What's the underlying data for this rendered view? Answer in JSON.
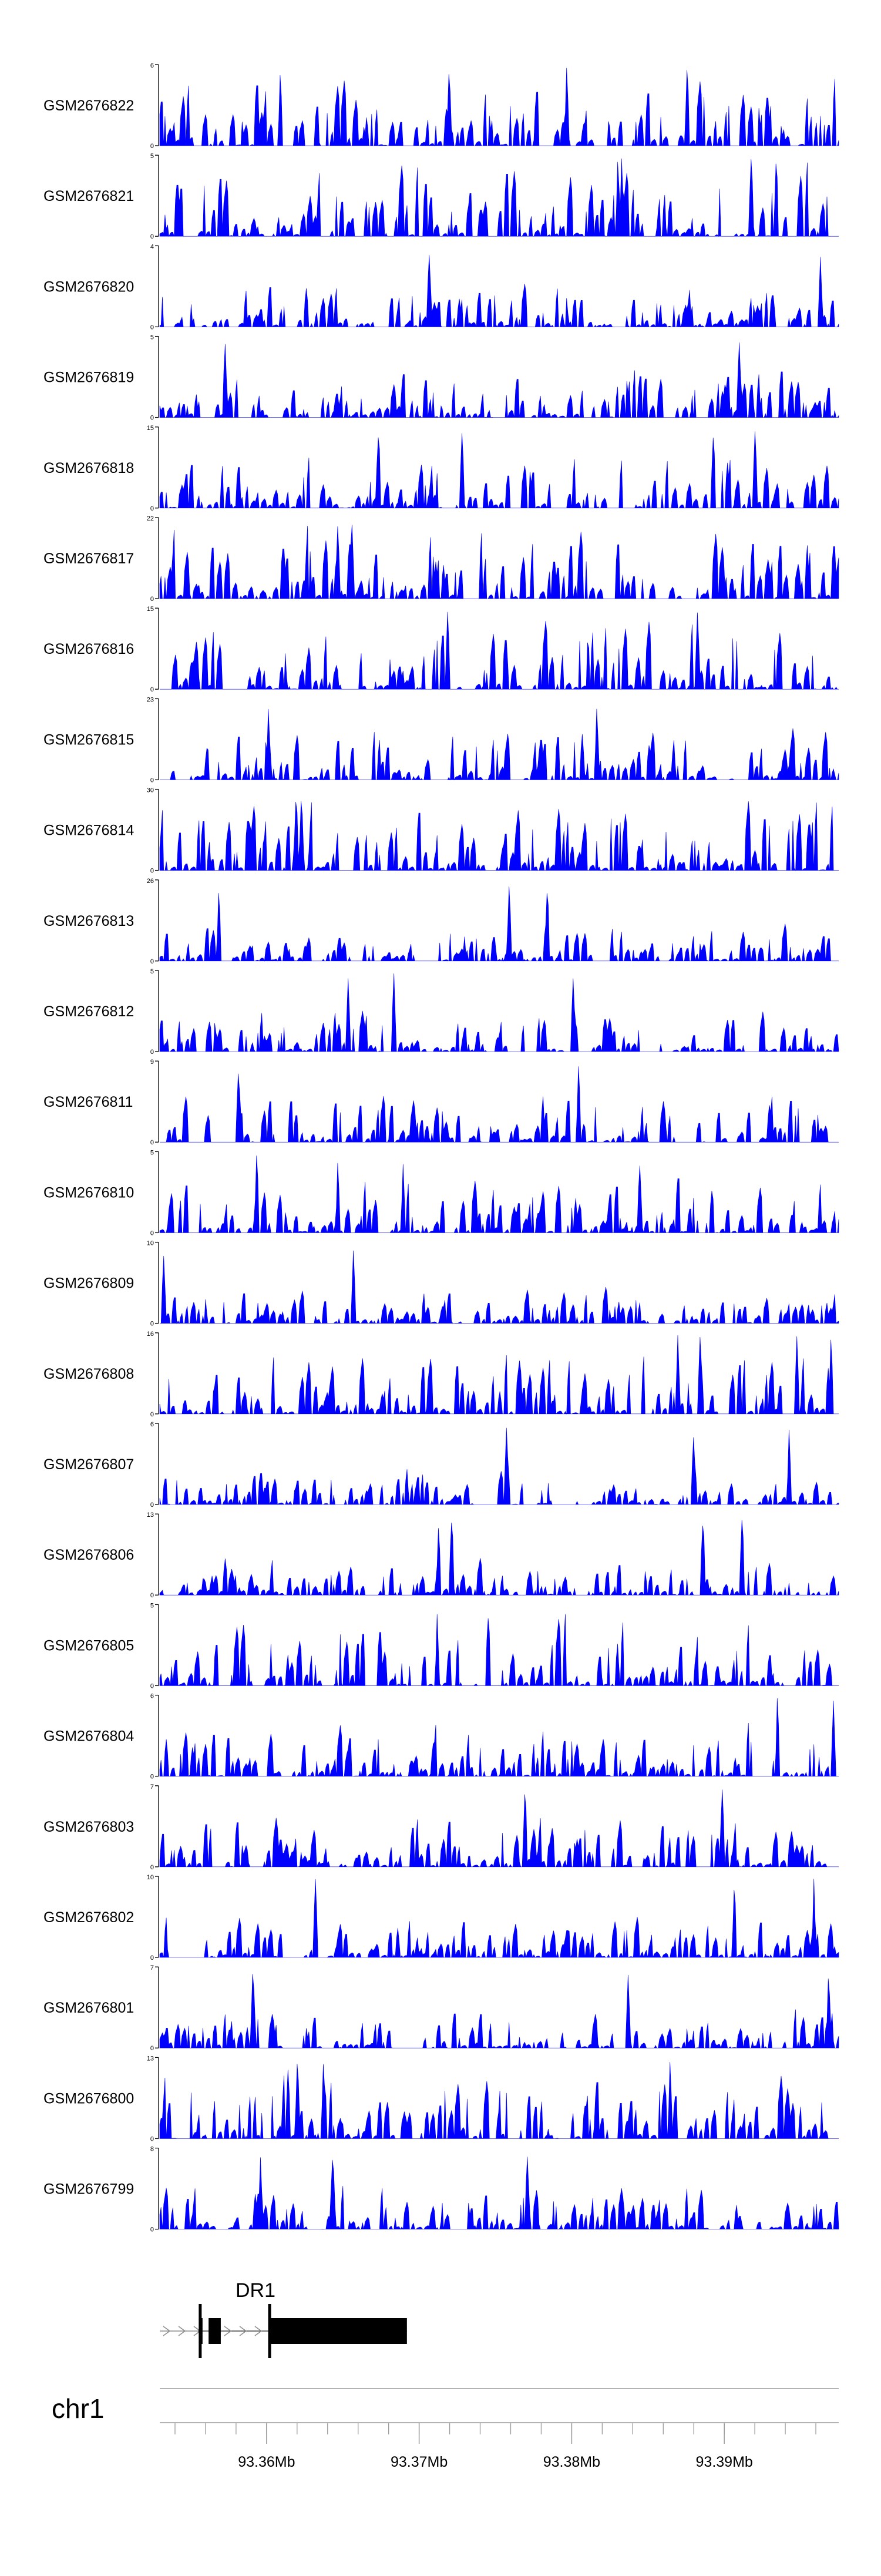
{
  "chart_data": {
    "type": "area",
    "title": "",
    "fill_color": "#0000ff",
    "axis_color": "#000000",
    "x_range_bp": [
      93353000,
      93397500
    ],
    "tracks": [
      {
        "label": "GSM2676822",
        "ymax": 6,
        "ymax_label": "6"
      },
      {
        "label": "GSM2676821",
        "ymax": 5,
        "ymax_label": "5"
      },
      {
        "label": "GSM2676820",
        "ymax": 4,
        "ymax_label": "4"
      },
      {
        "label": "GSM2676819",
        "ymax": 5,
        "ymax_label": "5"
      },
      {
        "label": "GSM2676818",
        "ymax": 15,
        "ymax_label": "15"
      },
      {
        "label": "GSM2676817",
        "ymax": 22,
        "ymax_label": "22"
      },
      {
        "label": "GSM2676816",
        "ymax": 15,
        "ymax_label": "15"
      },
      {
        "label": "GSM2676815",
        "ymax": 23,
        "ymax_label": "23"
      },
      {
        "label": "GSM2676814",
        "ymax": 30,
        "ymax_label": "30"
      },
      {
        "label": "GSM2676813",
        "ymax": 26,
        "ymax_label": "26"
      },
      {
        "label": "GSM2676812",
        "ymax": 5,
        "ymax_label": "5"
      },
      {
        "label": "GSM2676811",
        "ymax": 9,
        "ymax_label": "9"
      },
      {
        "label": "GSM2676810",
        "ymax": 5,
        "ymax_label": "5"
      },
      {
        "label": "GSM2676809",
        "ymax": 10,
        "ymax_label": "10"
      },
      {
        "label": "GSM2676808",
        "ymax": 16,
        "ymax_label": "16"
      },
      {
        "label": "GSM2676807",
        "ymax": 6,
        "ymax_label": "6"
      },
      {
        "label": "GSM2676806",
        "ymax": 13,
        "ymax_label": "13"
      },
      {
        "label": "GSM2676805",
        "ymax": 5,
        "ymax_label": "5"
      },
      {
        "label": "GSM2676804",
        "ymax": 6,
        "ymax_label": "6"
      },
      {
        "label": "GSM2676803",
        "ymax": 7,
        "ymax_label": "7"
      },
      {
        "label": "GSM2676802",
        "ymax": 10,
        "ymax_label": "10"
      },
      {
        "label": "GSM2676801",
        "ymax": 7,
        "ymax_label": "7"
      },
      {
        "label": "GSM2676800",
        "ymax": 13,
        "ymax_label": "13"
      },
      {
        "label": "GSM2676799",
        "ymax": 8,
        "ymax_label": "8"
      }
    ],
    "y_min_label": "0",
    "gene": {
      "name": "DR1",
      "strand": "+",
      "tx_start": 93355500,
      "tx_end": 93369200,
      "exons": [
        [
          93355650,
          93355700
        ],
        [
          93356200,
          93357000
        ],
        [
          93360200,
          93369200
        ]
      ]
    },
    "chromosome": "chr1",
    "x_ticks": [
      {
        "pos": 93360000,
        "label": "93.36Mb"
      },
      {
        "pos": 93370000,
        "label": "93.37Mb"
      },
      {
        "pos": 93380000,
        "label": "93.38Mb"
      },
      {
        "pos": 93390000,
        "label": "93.39Mb"
      }
    ],
    "minor_tick_step_bp": 2000
  }
}
